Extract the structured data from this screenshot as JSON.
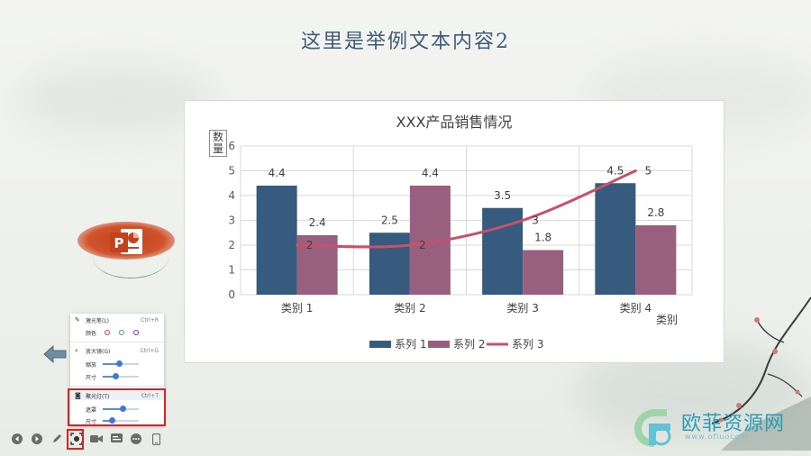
{
  "slide": {
    "title": "这里是举例文本内容2"
  },
  "chart_data": {
    "type": "bar",
    "title": "XXX产品销售情况",
    "ylabel": "数量",
    "xlabel": "类别",
    "ylim": [
      0,
      6
    ],
    "yticks": [
      0,
      1,
      2,
      3,
      4,
      5,
      6
    ],
    "categories": [
      "类别 1",
      "类别 2",
      "类别 3",
      "类别 4"
    ],
    "series": [
      {
        "name": "系列 1",
        "kind": "bar",
        "color": "#375a7f",
        "values": [
          4.4,
          2.5,
          3.5,
          4.5
        ]
      },
      {
        "name": "系列 2",
        "kind": "bar",
        "color": "#98607e",
        "values": [
          2.4,
          4.4,
          1.8,
          2.8
        ]
      },
      {
        "name": "系列 3",
        "kind": "line",
        "color": "#c8506a",
        "values": [
          2,
          2,
          3,
          5
        ]
      }
    ],
    "grid": true,
    "legend": "bottom"
  },
  "ppt_logo": {
    "letter": "P",
    "color": "#c2411e"
  },
  "tool_menu": {
    "laser_pointer": {
      "label": "激光笔(L)",
      "shortcut": "Ctrl+R"
    },
    "color_label": "颜色",
    "color_options": [
      "#e03a3a",
      "#4caf50",
      "#9c27b0"
    ],
    "magnifier": {
      "label": "放大镜(G)",
      "shortcut": "Ctrl+G"
    },
    "zoom_label": "缩放",
    "zoom_level": 0.45,
    "size_label": "尺寸",
    "magnifier_size": 0.35,
    "spotlight": {
      "label": "聚光灯(T)",
      "shortcut": "Ctrl+T"
    },
    "mask_label": "遮罩",
    "mask_level": 0.55,
    "spotlight_size_label": "尺寸",
    "spotlight_size": 0.25
  },
  "toolbar": {
    "buttons": [
      "prev-icon",
      "next-icon",
      "pen-icon",
      "spotlight-icon",
      "camera-icon",
      "subtitle-icon",
      "more-icon",
      "device-icon"
    ]
  },
  "watermark": {
    "name": "欧菲资源网",
    "url": "www.ofluocom",
    "logo_letter": "F"
  }
}
